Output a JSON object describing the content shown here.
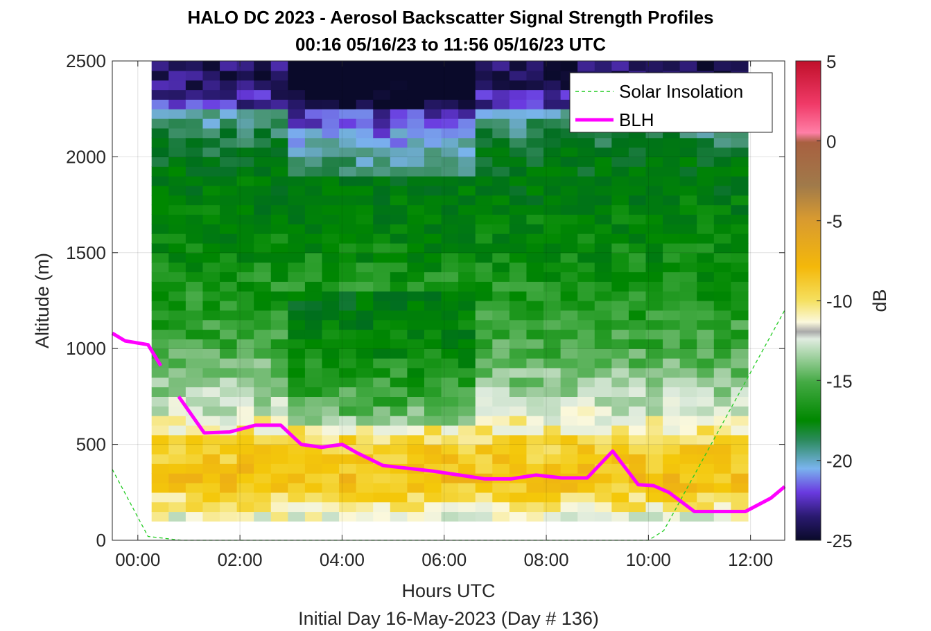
{
  "chart_data": {
    "type": "heatmap",
    "title": "HALO DC 2023 - Aerosol Backscatter Signal Strength Profiles",
    "subtitle": "00:16 05/16/23 to 11:56 05/16/23  UTC",
    "xlabel": "Hours UTC",
    "xlabel2": "Initial Day 16-May-2023 (Day # 136)",
    "ylabel": "Altitude (m)",
    "xlim": [
      -0.5,
      12.67
    ],
    "ylim": [
      0,
      2500
    ],
    "x_ticks": [
      0,
      2,
      4,
      6,
      8,
      10,
      12
    ],
    "x_tick_labels": [
      "00:00",
      "02:00",
      "04:00",
      "06:00",
      "08:00",
      "10:00",
      "12:00"
    ],
    "y_ticks": [
      0,
      500,
      1000,
      1500,
      2000,
      2500
    ],
    "y_tick_labels": [
      "0",
      "500",
      "1000",
      "1500",
      "2000",
      "2500"
    ],
    "grid": true,
    "colorbar": {
      "label": "dB",
      "range": [
        -25,
        5
      ],
      "ticks": [
        5,
        0,
        -5,
        -10,
        -15,
        -20,
        -25
      ],
      "tick_labels": [
        "5",
        "0",
        "-5",
        "-10",
        "-15",
        "-20",
        "-25"
      ]
    },
    "heatmap": {
      "x_start": 0.27,
      "x_end": 11.95,
      "y_start": 100,
      "y_end": 2500,
      "approx_dB_by_altitude": [
        {
          "altitude": 125,
          "dB": -10
        },
        {
          "altitude": 300,
          "dB": -6.5
        },
        {
          "altitude": 500,
          "dB": -7.5
        },
        {
          "altitude": 700,
          "dB": -11
        },
        {
          "altitude": 1000,
          "dB": -13.5
        },
        {
          "altitude": 1500,
          "dB": -15.5
        },
        {
          "altitude": 2000,
          "dB": -17
        },
        {
          "altitude": 2400,
          "dB": -22
        }
      ]
    },
    "legend_position": "top-right",
    "series": [
      {
        "name": "Solar Insolation",
        "color": "#22cc22",
        "style": "dashed",
        "x": [
          -0.5,
          0.2,
          0.85,
          10.0,
          10.3,
          12.67
        ],
        "y": [
          370,
          20,
          0,
          0,
          50,
          1200
        ]
      },
      {
        "name": "BLH",
        "color": "#ff00ff",
        "style": "solid",
        "segments": [
          {
            "x": [
              -0.5,
              -0.25,
              0.2,
              0.45
            ],
            "y": [
              1080,
              1040,
              1020,
              910
            ]
          },
          {
            "x": [
              0.8,
              1.3,
              1.8,
              2.3,
              2.8,
              3.2,
              3.6,
              4.0,
              4.3,
              4.8,
              5.3,
              5.8,
              6.3,
              6.8,
              7.3,
              7.8,
              8.3,
              8.8,
              9.3,
              9.8,
              10.1,
              10.4,
              10.9,
              11.9,
              12.4,
              12.67
            ],
            "y": [
              750,
              560,
              565,
              600,
              600,
              500,
              485,
              500,
              455,
              390,
              375,
              360,
              340,
              320,
              320,
              340,
              325,
              325,
              465,
              290,
              285,
              250,
              150,
              150,
              220,
              280
            ]
          }
        ]
      }
    ]
  }
}
